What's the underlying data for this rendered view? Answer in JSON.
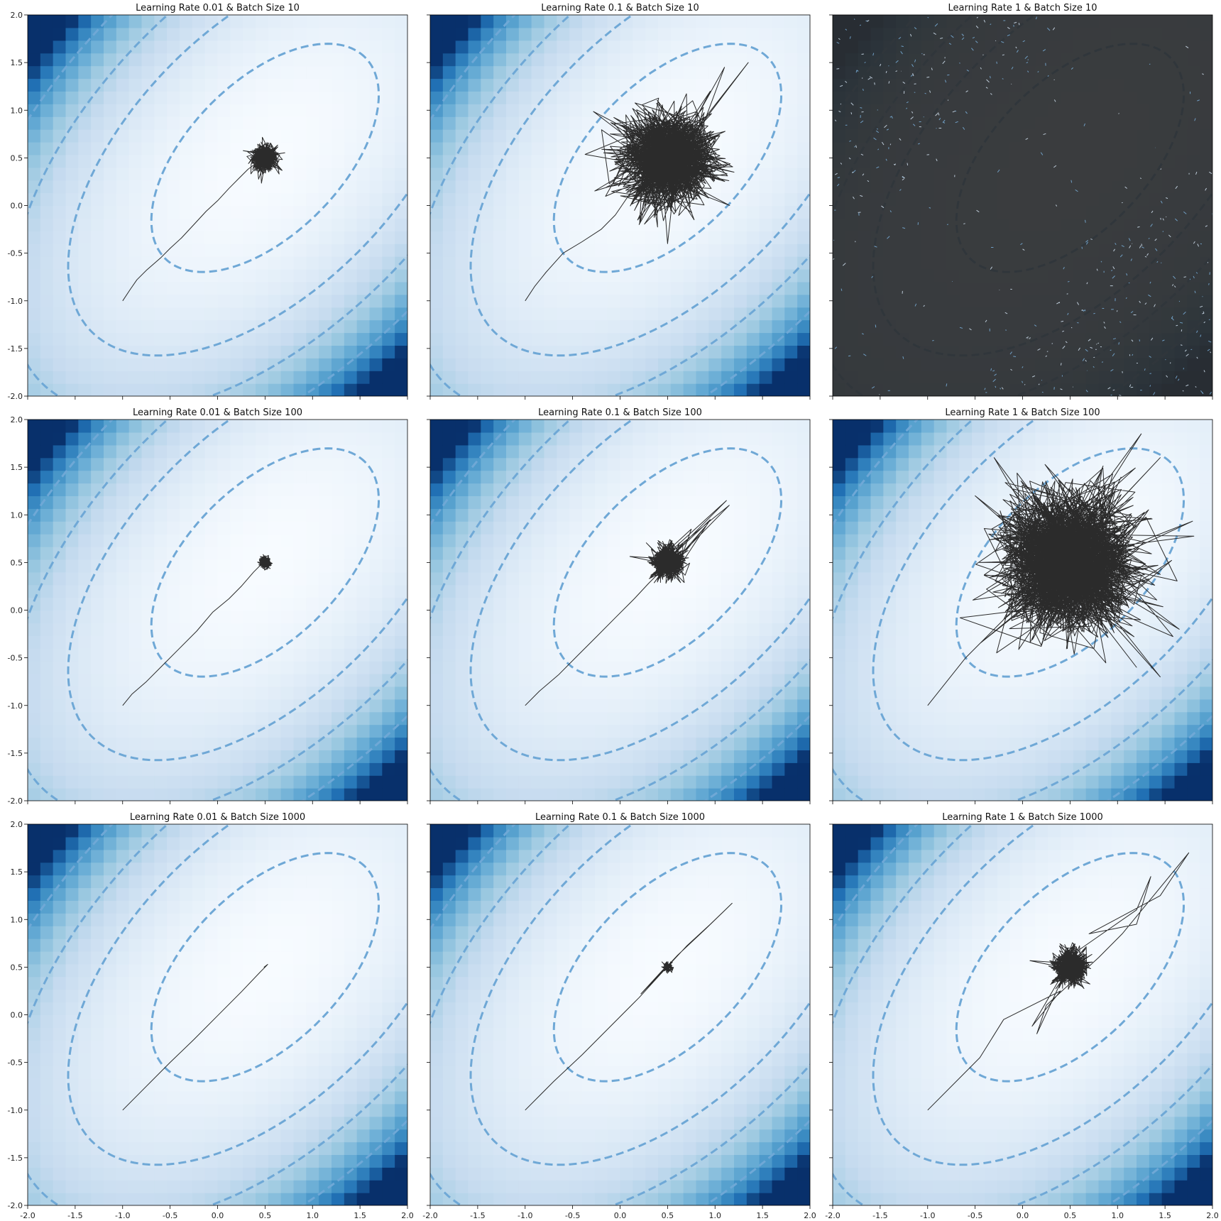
{
  "figure": {
    "rows": 3,
    "cols": 3,
    "sharex": true,
    "sharey": true
  },
  "colors": {
    "background_light": "#f7fbff",
    "background_dark": "#08306b",
    "contour": "#6fa8d6",
    "trajectory": "#2b2b2b",
    "diverged_background": "#2b2d2f"
  },
  "chart_data": [
    {
      "type": "line",
      "title": "Learning Rate 0.01 & Batch Size 10",
      "learning_rate": 0.01,
      "batch_size": 10,
      "xlim": [
        -2.0,
        2.0
      ],
      "ylim": [
        -2.0,
        2.0
      ],
      "xticks": [
        "-2.0",
        "-1.5",
        "-1.0",
        "-0.5",
        "0.0",
        "0.5",
        "1.0",
        "1.5",
        "2.0"
      ],
      "yticks": [
        "-2.0",
        "-1.5",
        "-1.0",
        "-0.5",
        "0.0",
        "0.5",
        "1.0",
        "1.5",
        "2.0"
      ],
      "start": [
        -1.0,
        -1.0
      ],
      "minimum": [
        0.5,
        0.5
      ],
      "path": [
        [
          -1.0,
          -1.0
        ],
        [
          -0.92,
          -0.88
        ],
        [
          -0.85,
          -0.78
        ],
        [
          -0.75,
          -0.68
        ],
        [
          -0.6,
          -0.55
        ],
        [
          -0.5,
          -0.45
        ],
        [
          -0.38,
          -0.34
        ],
        [
          -0.25,
          -0.2
        ],
        [
          -0.12,
          -0.06
        ],
        [
          0.0,
          0.05
        ],
        [
          0.12,
          0.18
        ],
        [
          0.22,
          0.28
        ],
        [
          0.32,
          0.38
        ],
        [
          0.4,
          0.44
        ]
      ],
      "cloud": {
        "center": [
          0.5,
          0.5
        ],
        "spread": 0.12,
        "segments": 600
      },
      "diverged": false
    },
    {
      "type": "line",
      "title": "Learning Rate 0.1 & Batch Size 10",
      "learning_rate": 0.1,
      "batch_size": 10,
      "xlim": [
        -2.0,
        2.0
      ],
      "ylim": [
        -2.0,
        2.0
      ],
      "xticks": [
        "-2.0",
        "-1.5",
        "-1.0",
        "-0.5",
        "0.0",
        "0.5",
        "1.0",
        "1.5",
        "2.0"
      ],
      "yticks": [
        "-2.0",
        "-1.5",
        "-1.0",
        "-0.5",
        "0.0",
        "0.5",
        "1.0",
        "1.5",
        "2.0"
      ],
      "start": [
        -1.0,
        -1.0
      ],
      "minimum": [
        0.5,
        0.5
      ],
      "path": [
        [
          -1.0,
          -1.0
        ],
        [
          -0.9,
          -0.85
        ],
        [
          -0.78,
          -0.7
        ],
        [
          -0.6,
          -0.5
        ],
        [
          -0.4,
          -0.38
        ],
        [
          -0.2,
          -0.25
        ],
        [
          -0.05,
          -0.1
        ]
      ],
      "cloud": {
        "center": [
          0.5,
          0.5
        ],
        "spread": 0.42,
        "segments": 1400
      },
      "outliers": [
        [
          1.1,
          1.45
        ],
        [
          1.35,
          1.5
        ],
        [
          0.95,
          1.2
        ],
        [
          1.2,
          0.35
        ],
        [
          0.78,
          -0.15
        ],
        [
          0.5,
          -0.4
        ],
        [
          0.2,
          -0.2
        ],
        [
          1.05,
          0.75
        ]
      ],
      "diverged": false
    },
    {
      "type": "line",
      "title": "Learning Rate 1 & Batch Size 10",
      "learning_rate": 1,
      "batch_size": 10,
      "xlim": [
        -2.0,
        2.0
      ],
      "ylim": [
        -2.0,
        2.0
      ],
      "xticks": [
        "-2.0",
        "-1.5",
        "-1.0",
        "-0.5",
        "0.0",
        "0.5",
        "1.0",
        "1.5",
        "2.0"
      ],
      "yticks": [
        "-2.0",
        "-1.5",
        "-1.0",
        "-0.5",
        "0.0",
        "0.5",
        "1.0",
        "1.5",
        "2.0"
      ],
      "start": [
        -1.0,
        -1.0
      ],
      "minimum": [
        0.5,
        0.5
      ],
      "path": [],
      "cloud": {
        "center": [
          0.5,
          0.5
        ],
        "spread": 0,
        "segments": 0
      },
      "diverged": true
    },
    {
      "type": "line",
      "title": "Learning Rate 0.01 & Batch Size 100",
      "learning_rate": 0.01,
      "batch_size": 100,
      "xlim": [
        -2.0,
        2.0
      ],
      "ylim": [
        -2.0,
        2.0
      ],
      "xticks": [
        "-2.0",
        "-1.5",
        "-1.0",
        "-0.5",
        "0.0",
        "0.5",
        "1.0",
        "1.5",
        "2.0"
      ],
      "yticks": [
        "-2.0",
        "-1.5",
        "-1.0",
        "-0.5",
        "0.0",
        "0.5",
        "1.0",
        "1.5",
        "2.0"
      ],
      "start": [
        -1.0,
        -1.0
      ],
      "minimum": [
        0.5,
        0.5
      ],
      "path": [
        [
          -1.0,
          -1.0
        ],
        [
          -0.9,
          -0.88
        ],
        [
          -0.75,
          -0.75
        ],
        [
          -0.58,
          -0.58
        ],
        [
          -0.4,
          -0.4
        ],
        [
          -0.22,
          -0.22
        ],
        [
          -0.05,
          -0.02
        ],
        [
          0.12,
          0.12
        ],
        [
          0.25,
          0.25
        ],
        [
          0.38,
          0.4
        ],
        [
          0.45,
          0.47
        ]
      ],
      "cloud": {
        "center": [
          0.5,
          0.5
        ],
        "spread": 0.05,
        "segments": 300
      },
      "diverged": false
    },
    {
      "type": "line",
      "title": "Learning Rate 0.1 & Batch Size 100",
      "learning_rate": 0.1,
      "batch_size": 100,
      "xlim": [
        -2.0,
        2.0
      ],
      "ylim": [
        -2.0,
        2.0
      ],
      "xticks": [
        "-2.0",
        "-1.5",
        "-1.0",
        "-0.5",
        "0.0",
        "0.5",
        "1.0",
        "1.5",
        "2.0"
      ],
      "yticks": [
        "-2.0",
        "-1.5",
        "-1.0",
        "-0.5",
        "0.0",
        "0.5",
        "1.0",
        "1.5",
        "2.0"
      ],
      "start": [
        -1.0,
        -1.0
      ],
      "minimum": [
        0.5,
        0.5
      ],
      "path": [
        [
          -1.0,
          -1.0
        ],
        [
          -0.85,
          -0.85
        ],
        [
          -0.65,
          -0.68
        ],
        [
          -0.45,
          -0.48
        ],
        [
          -0.25,
          -0.28
        ],
        [
          -0.05,
          -0.08
        ],
        [
          0.15,
          0.12
        ],
        [
          0.3,
          0.28
        ],
        [
          0.4,
          0.38
        ]
      ],
      "cloud": {
        "center": [
          0.5,
          0.5
        ],
        "spread": 0.15,
        "segments": 700
      },
      "outliers": [
        [
          0.75,
          0.85
        ],
        [
          0.95,
          0.95
        ],
        [
          1.12,
          1.15
        ],
        [
          1.15,
          1.1
        ],
        [
          0.9,
          0.88
        ]
      ],
      "diverged": false
    },
    {
      "type": "line",
      "title": "Learning Rate 1 & Batch Size 100",
      "learning_rate": 1,
      "batch_size": 100,
      "xlim": [
        -2.0,
        2.0
      ],
      "ylim": [
        -2.0,
        2.0
      ],
      "xticks": [
        "-2.0",
        "-1.5",
        "-1.0",
        "-0.5",
        "0.0",
        "0.5",
        "1.0",
        "1.5",
        "2.0"
      ],
      "yticks": [
        "-2.0",
        "-1.5",
        "-1.0",
        "-0.5",
        "0.0",
        "0.5",
        "1.0",
        "1.5",
        "2.0"
      ],
      "start": [
        -1.0,
        -1.0
      ],
      "minimum": [
        0.5,
        0.5
      ],
      "path": [
        [
          -1.0,
          -1.0
        ],
        [
          -0.6,
          -0.5
        ],
        [
          -0.2,
          -0.1
        ]
      ],
      "cloud": {
        "center": [
          0.5,
          0.5
        ],
        "spread": 0.62,
        "segments": 1800
      },
      "outliers": [
        [
          1.25,
          1.85
        ],
        [
          1.45,
          1.6
        ],
        [
          -0.5,
          1.2
        ],
        [
          -0.3,
          1.6
        ],
        [
          -0.45,
          -0.35
        ],
        [
          1.65,
          -0.2
        ],
        [
          1.45,
          -0.7
        ],
        [
          0.0,
          0.0
        ],
        [
          -0.2,
          -0.1
        ],
        [
          1.2,
          -0.6
        ]
      ],
      "diverged": false
    },
    {
      "type": "line",
      "title": "Learning Rate 0.01 & Batch Size 1000",
      "learning_rate": 0.01,
      "batch_size": 1000,
      "xlim": [
        -2.0,
        2.0
      ],
      "ylim": [
        -2.0,
        2.0
      ],
      "xticks": [
        "-2.0",
        "-1.5",
        "-1.0",
        "-0.5",
        "0.0",
        "0.5",
        "1.0",
        "1.5",
        "2.0"
      ],
      "yticks": [
        "-2.0",
        "-1.5",
        "-1.0",
        "-0.5",
        "0.0",
        "0.5",
        "1.0",
        "1.5",
        "2.0"
      ],
      "start": [
        -1.0,
        -1.0
      ],
      "minimum": [
        0.5,
        0.5
      ],
      "path": [
        [
          -1.0,
          -1.0
        ],
        [
          -0.75,
          -0.75
        ],
        [
          -0.5,
          -0.5
        ],
        [
          -0.25,
          -0.26
        ],
        [
          0.0,
          -0.01
        ],
        [
          0.25,
          0.24
        ],
        [
          0.45,
          0.45
        ],
        [
          0.52,
          0.52
        ],
        [
          0.49,
          0.5
        ],
        [
          0.53,
          0.53
        ]
      ],
      "cloud": {
        "center": [
          0.5,
          0.5
        ],
        "spread": 0.0,
        "segments": 0
      },
      "diverged": false
    },
    {
      "type": "line",
      "title": "Learning Rate 0.1 & Batch Size 1000",
      "learning_rate": 0.1,
      "batch_size": 1000,
      "xlim": [
        -2.0,
        2.0
      ],
      "ylim": [
        -2.0,
        2.0
      ],
      "xticks": [
        "-2.0",
        "-1.5",
        "-1.0",
        "-0.5",
        "0.0",
        "0.5",
        "1.0",
        "1.5",
        "2.0"
      ],
      "yticks": [
        "-2.0",
        "-1.5",
        "-1.0",
        "-0.5",
        "0.0",
        "0.5",
        "1.0",
        "1.5",
        "2.0"
      ],
      "start": [
        -1.0,
        -1.0
      ],
      "minimum": [
        0.5,
        0.5
      ],
      "path": [
        [
          -1.0,
          -1.0
        ],
        [
          -0.7,
          -0.7
        ],
        [
          -0.4,
          -0.42
        ],
        [
          -0.1,
          -0.12
        ],
        [
          0.2,
          0.18
        ],
        [
          0.42,
          0.42
        ],
        [
          0.7,
          0.72
        ],
        [
          0.95,
          0.95
        ],
        [
          1.18,
          1.17
        ],
        [
          0.9,
          0.9
        ],
        [
          0.6,
          0.62
        ],
        [
          0.3,
          0.3
        ],
        [
          0.22,
          0.22
        ],
        [
          0.45,
          0.47
        ],
        [
          0.55,
          0.55
        ],
        [
          0.48,
          0.5
        ]
      ],
      "cloud": {
        "center": [
          0.5,
          0.5
        ],
        "spread": 0.04,
        "segments": 150
      },
      "diverged": false
    },
    {
      "type": "line",
      "title": "Learning Rate 1 & Batch Size 1000",
      "learning_rate": 1,
      "batch_size": 1000,
      "xlim": [
        -2.0,
        2.0
      ],
      "ylim": [
        -2.0,
        2.0
      ],
      "xticks": [
        "-2.0",
        "-1.5",
        "-1.0",
        "-0.5",
        "0.0",
        "0.5",
        "1.0",
        "1.5",
        "2.0"
      ],
      "yticks": [
        "-2.0",
        "-1.5",
        "-1.0",
        "-0.5",
        "0.0",
        "0.5",
        "1.0",
        "1.5",
        "2.0"
      ],
      "start": [
        -1.0,
        -1.0
      ],
      "minimum": [
        0.5,
        0.5
      ],
      "path": [
        [
          -1.0,
          -1.0
        ],
        [
          -0.45,
          -0.45
        ],
        [
          -0.2,
          -0.05
        ],
        [
          0.4,
          0.25
        ],
        [
          0.1,
          -0.12
        ],
        [
          0.55,
          0.65
        ],
        [
          1.2,
          1.1
        ],
        [
          1.35,
          1.45
        ],
        [
          1.2,
          0.95
        ],
        [
          0.7,
          0.85
        ],
        [
          1.45,
          1.25
        ],
        [
          1.75,
          1.7
        ],
        [
          1.05,
          0.85
        ],
        [
          0.8,
          0.6
        ],
        [
          0.25,
          0.1
        ],
        [
          0.15,
          -0.2
        ]
      ],
      "cloud": {
        "center": [
          0.5,
          0.5
        ],
        "spread": 0.16,
        "segments": 700
      },
      "diverged": false
    }
  ]
}
